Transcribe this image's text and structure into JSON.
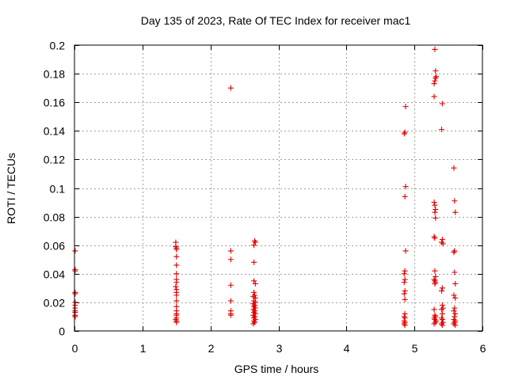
{
  "chart_data": {
    "type": "scatter",
    "title": "Day 135 of 2023, Rate Of TEC Index for receiver mac1",
    "xlabel": "GPS time / hours",
    "ylabel": "ROTI / TECUs",
    "xlim": [
      0,
      6
    ],
    "ylim": [
      0,
      0.2
    ],
    "xticks": [
      0,
      1,
      2,
      3,
      4,
      5,
      6
    ],
    "yticks": [
      0,
      0.02,
      0.04,
      0.06,
      0.08,
      0.1,
      0.12,
      0.14,
      0.16,
      0.18,
      0.2
    ],
    "xtick_labels": [
      "0",
      "1",
      "2",
      "3",
      "4",
      "5",
      "6"
    ],
    "ytick_labels": [
      "0",
      "0.02",
      "0.04",
      "0.06",
      "0.08",
      "0.1",
      "0.12",
      "0.14",
      "0.16",
      "0.18",
      "0.2"
    ],
    "grid": true,
    "marker": "+",
    "color": "#e00000",
    "series": [
      {
        "name": "ROTI",
        "points": [
          [
            0.01,
            0.056
          ],
          [
            0.01,
            0.043
          ],
          [
            0.01,
            0.042
          ],
          [
            0.01,
            0.027
          ],
          [
            0.01,
            0.026
          ],
          [
            0.01,
            0.02
          ],
          [
            0.01,
            0.018
          ],
          [
            0.01,
            0.016
          ],
          [
            0.01,
            0.014
          ],
          [
            0.01,
            0.013
          ],
          [
            0.01,
            0.011
          ],
          [
            0.01,
            0.01
          ],
          [
            1.49,
            0.062
          ],
          [
            1.49,
            0.059
          ],
          [
            1.5,
            0.058
          ],
          [
            1.5,
            0.057
          ],
          [
            1.5,
            0.052
          ],
          [
            1.5,
            0.046
          ],
          [
            1.5,
            0.04
          ],
          [
            1.5,
            0.036
          ],
          [
            1.5,
            0.034
          ],
          [
            1.49,
            0.031
          ],
          [
            1.5,
            0.029
          ],
          [
            1.5,
            0.027
          ],
          [
            1.5,
            0.025
          ],
          [
            1.5,
            0.021
          ],
          [
            1.5,
            0.017
          ],
          [
            1.5,
            0.014
          ],
          [
            1.5,
            0.012
          ],
          [
            1.5,
            0.011
          ],
          [
            1.5,
            0.009
          ],
          [
            1.49,
            0.008
          ],
          [
            1.5,
            0.007
          ],
          [
            1.5,
            0.006
          ],
          [
            2.3,
            0.17
          ],
          [
            2.3,
            0.056
          ],
          [
            2.3,
            0.05
          ],
          [
            2.3,
            0.032
          ],
          [
            2.3,
            0.021
          ],
          [
            2.3,
            0.014
          ],
          [
            2.3,
            0.012
          ],
          [
            2.3,
            0.011
          ],
          [
            2.65,
            0.063
          ],
          [
            2.66,
            0.062
          ],
          [
            2.64,
            0.06
          ],
          [
            2.64,
            0.048
          ],
          [
            2.64,
            0.035
          ],
          [
            2.66,
            0.033
          ],
          [
            2.64,
            0.027
          ],
          [
            2.65,
            0.025
          ],
          [
            2.63,
            0.024
          ],
          [
            2.66,
            0.023
          ],
          [
            2.64,
            0.021
          ],
          [
            2.66,
            0.02
          ],
          [
            2.63,
            0.019
          ],
          [
            2.65,
            0.018
          ],
          [
            2.64,
            0.017
          ],
          [
            2.66,
            0.016
          ],
          [
            2.63,
            0.015
          ],
          [
            2.65,
            0.014
          ],
          [
            2.64,
            0.013
          ],
          [
            2.66,
            0.012
          ],
          [
            2.63,
            0.011
          ],
          [
            2.65,
            0.01
          ],
          [
            2.64,
            0.009
          ],
          [
            2.66,
            0.008
          ],
          [
            2.64,
            0.007
          ],
          [
            2.65,
            0.006
          ],
          [
            2.63,
            0.005
          ],
          [
            4.87,
            0.157
          ],
          [
            4.86,
            0.139
          ],
          [
            4.85,
            0.138
          ],
          [
            4.87,
            0.101
          ],
          [
            4.86,
            0.094
          ],
          [
            4.87,
            0.056
          ],
          [
            4.86,
            0.042
          ],
          [
            4.85,
            0.04
          ],
          [
            4.86,
            0.036
          ],
          [
            4.85,
            0.034
          ],
          [
            4.86,
            0.028
          ],
          [
            4.85,
            0.026
          ],
          [
            4.86,
            0.022
          ],
          [
            4.86,
            0.012
          ],
          [
            4.85,
            0.01
          ],
          [
            4.86,
            0.009
          ],
          [
            4.85,
            0.007
          ],
          [
            4.86,
            0.006
          ],
          [
            4.85,
            0.005
          ],
          [
            4.86,
            0.004
          ],
          [
            5.3,
            0.197
          ],
          [
            5.31,
            0.182
          ],
          [
            5.32,
            0.178
          ],
          [
            5.31,
            0.177
          ],
          [
            5.3,
            0.175
          ],
          [
            5.29,
            0.173
          ],
          [
            5.29,
            0.164
          ],
          [
            5.29,
            0.09
          ],
          [
            5.3,
            0.088
          ],
          [
            5.31,
            0.085
          ],
          [
            5.3,
            0.083
          ],
          [
            5.31,
            0.079
          ],
          [
            5.29,
            0.066
          ],
          [
            5.3,
            0.065
          ],
          [
            5.3,
            0.042
          ],
          [
            5.31,
            0.038
          ],
          [
            5.29,
            0.036
          ],
          [
            5.3,
            0.035
          ],
          [
            5.31,
            0.034
          ],
          [
            5.3,
            0.033
          ],
          [
            5.29,
            0.015
          ],
          [
            5.3,
            0.011
          ],
          [
            5.31,
            0.01
          ],
          [
            5.29,
            0.009
          ],
          [
            5.3,
            0.008
          ],
          [
            5.32,
            0.007
          ],
          [
            5.31,
            0.006
          ],
          [
            5.29,
            0.005
          ],
          [
            5.41,
            0.159
          ],
          [
            5.4,
            0.141
          ],
          [
            5.41,
            0.064
          ],
          [
            5.4,
            0.062
          ],
          [
            5.42,
            0.061
          ],
          [
            5.41,
            0.03
          ],
          [
            5.4,
            0.028
          ],
          [
            5.41,
            0.018
          ],
          [
            5.42,
            0.016
          ],
          [
            5.4,
            0.015
          ],
          [
            5.41,
            0.012
          ],
          [
            5.4,
            0.009
          ],
          [
            5.41,
            0.008
          ],
          [
            5.42,
            0.006
          ],
          [
            5.4,
            0.005
          ],
          [
            5.41,
            0.004
          ],
          [
            5.58,
            0.114
          ],
          [
            5.59,
            0.091
          ],
          [
            5.6,
            0.083
          ],
          [
            5.59,
            0.056
          ],
          [
            5.58,
            0.055
          ],
          [
            5.59,
            0.041
          ],
          [
            5.6,
            0.033
          ],
          [
            5.58,
            0.025
          ],
          [
            5.6,
            0.023
          ],
          [
            5.59,
            0.016
          ],
          [
            5.58,
            0.014
          ],
          [
            5.6,
            0.012
          ],
          [
            5.59,
            0.01
          ],
          [
            5.58,
            0.008
          ],
          [
            5.6,
            0.007
          ],
          [
            5.59,
            0.006
          ],
          [
            5.58,
            0.005
          ],
          [
            5.6,
            0.004
          ]
        ]
      }
    ]
  }
}
